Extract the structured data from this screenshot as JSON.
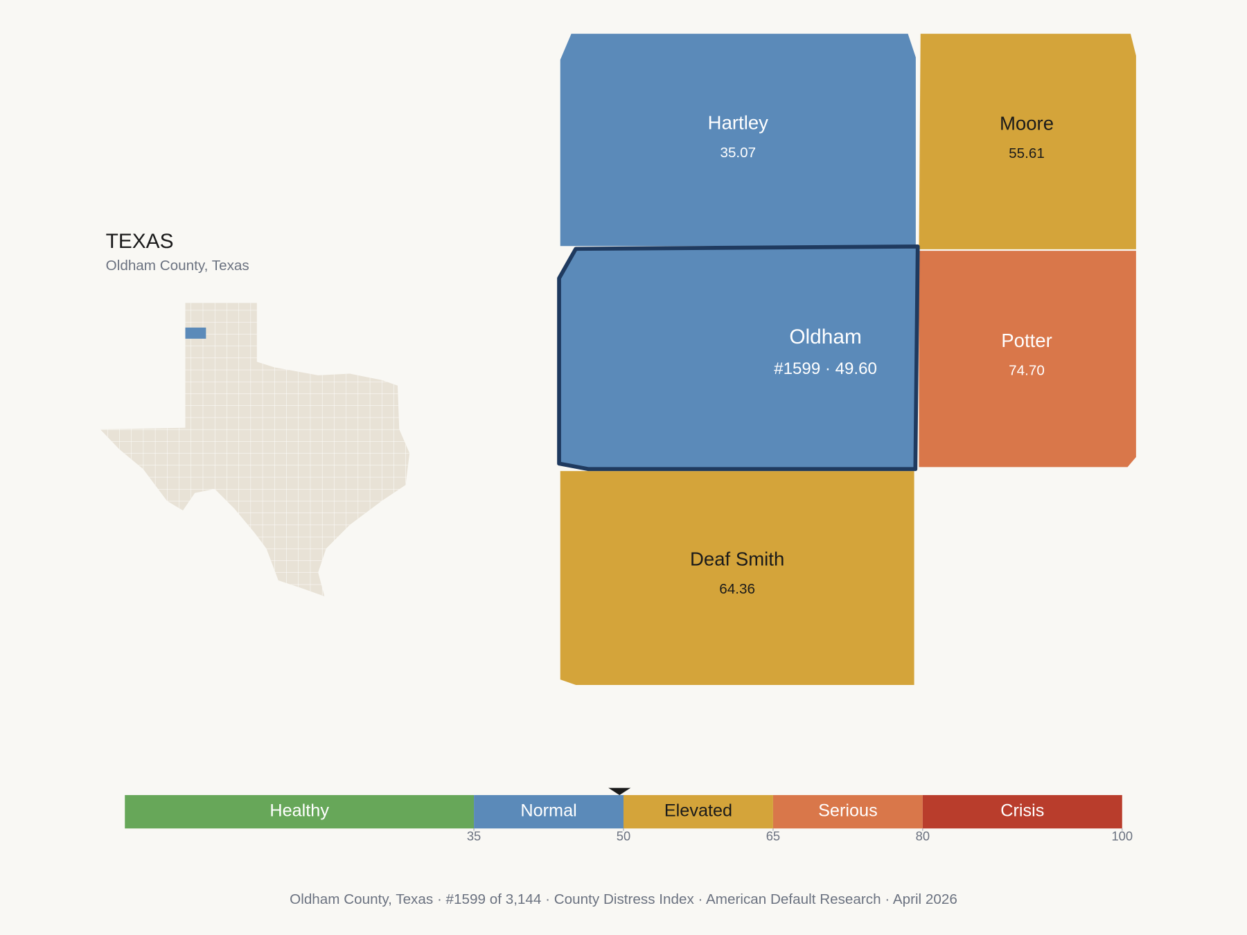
{
  "header": {
    "title": "TEXAS",
    "subtitle": "Oldham County, Texas"
  },
  "counties": [
    {
      "name": "Hartley",
      "value_label": "35.07",
      "color": "#5b8ab9",
      "selected": false
    },
    {
      "name": "Moore",
      "value_label": "55.61",
      "color": "#d4a43a",
      "selected": false
    },
    {
      "name": "Oldham",
      "value_label": "#1599 · 49.60",
      "color": "#5b8ab9",
      "selected": true
    },
    {
      "name": "Potter",
      "value_label": "74.70",
      "color": "#d9774a",
      "selected": false
    },
    {
      "name": "Deaf Smith",
      "value_label": "64.36",
      "color": "#d4a43a",
      "selected": false
    }
  ],
  "scale": {
    "range": [
      0,
      100
    ],
    "segments": [
      {
        "name": "Healthy",
        "color": "#67a759"
      },
      {
        "name": "Normal",
        "color": "#5b8ab9"
      },
      {
        "name": "Elevated",
        "color": "#d4a43a"
      },
      {
        "name": "Serious",
        "color": "#d9774a"
      },
      {
        "name": "Crisis",
        "color": "#b93d2c"
      }
    ],
    "ticks": [
      35,
      50,
      65,
      80,
      100
    ],
    "marker": 49.6
  },
  "footer": "Oldham County, Texas  ·  #1599 of 3,144  ·  County Distress Index  ·  American Default Research  ·  April 2026"
}
